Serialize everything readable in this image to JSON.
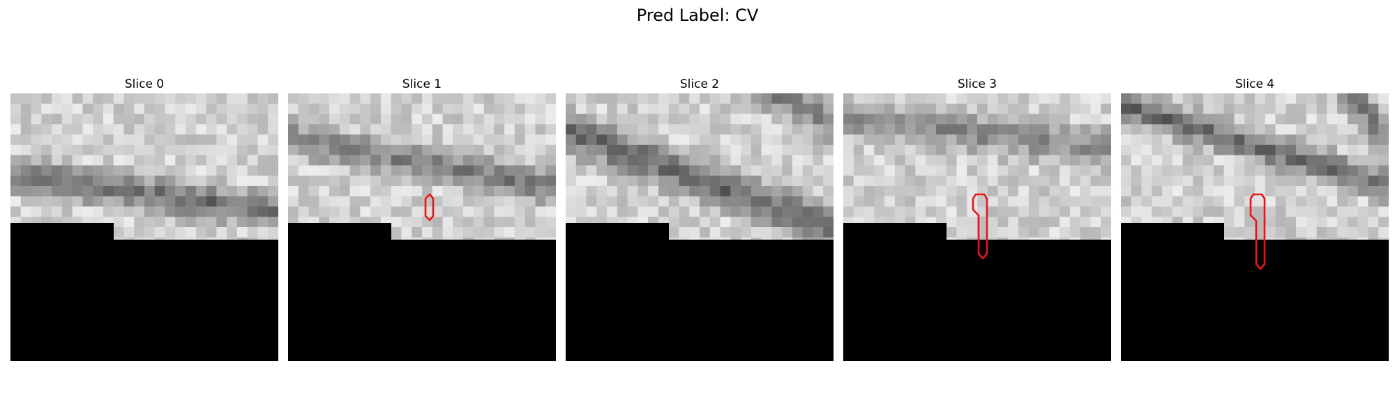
{
  "figure": {
    "title": "Pred Label: CV"
  },
  "colors": {
    "background": "#ffffff",
    "mask": "#000000",
    "contour": "#e8141c"
  },
  "slices": [
    {
      "label": "Slice 0"
    },
    {
      "label": "Slice 1"
    },
    {
      "label": "Slice 2"
    },
    {
      "label": "Slice 3"
    },
    {
      "label": "Slice 4"
    }
  ]
}
